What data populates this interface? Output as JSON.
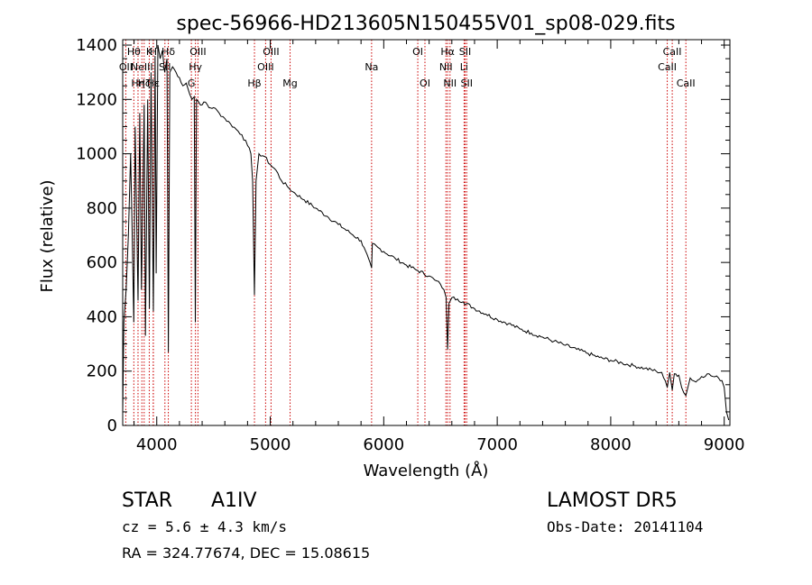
{
  "chart_data": {
    "type": "line",
    "title": "spec-56966-HD213605N150455V01_sp08-029.fits",
    "xlabel": "Wavelength (Å)",
    "ylabel": "Flux (relative)",
    "xlim": [
      3700,
      9050
    ],
    "ylim": [
      0,
      1420
    ],
    "xticks": [
      4000,
      5000,
      6000,
      7000,
      8000,
      9000
    ],
    "yticks": [
      0,
      200,
      400,
      600,
      800,
      1000,
      1200,
      1400
    ],
    "grid": false,
    "line_color": "#000000",
    "marker_color": "#cc0000",
    "series": [
      {
        "x": [
          3700,
          3710,
          3730,
          3750,
          3770,
          3798,
          3810,
          3835,
          3850,
          3865,
          3889,
          3900,
          3920,
          3935,
          3950,
          3970,
          3985,
          3995,
          4010,
          4030,
          4050,
          4070,
          4090,
          4102,
          4115,
          4140,
          4170,
          4200,
          4230,
          4260,
          4290,
          4310,
          4330,
          4340,
          4350,
          4370,
          4400,
          4430,
          4460,
          4500,
          4550,
          4600,
          4650,
          4700,
          4750,
          4800,
          4830,
          4845,
          4861,
          4875,
          4900,
          4950,
          5000,
          5050,
          5100,
          5150,
          5200,
          5300,
          5400,
          5500,
          5600,
          5700,
          5800,
          5893,
          5900,
          5950,
          6000,
          6100,
          6200,
          6300,
          6400,
          6450,
          6500,
          6530,
          6550,
          6563,
          6575,
          6600,
          6650,
          6700,
          6800,
          6900,
          7000,
          7100,
          7200,
          7300,
          7400,
          7500,
          7600,
          7700,
          7800,
          7900,
          8000,
          8100,
          8200,
          8300,
          8400,
          8450,
          8498,
          8520,
          8542,
          8560,
          8600,
          8625,
          8662,
          8700,
          8750,
          8800,
          8850,
          8900,
          8950,
          8980,
          9000,
          9020,
          9040
        ],
        "y": [
          50,
          380,
          500,
          700,
          1000,
          380,
          1100,
          460,
          1150,
          500,
          1180,
          330,
          1200,
          430,
          1300,
          420,
          1360,
          560,
          1400,
          1350,
          1380,
          1300,
          1350,
          270,
          1300,
          1320,
          1300,
          1280,
          1250,
          1260,
          1220,
          1200,
          1210,
          380,
          1200,
          1190,
          1180,
          1190,
          1170,
          1170,
          1150,
          1130,
          1110,
          1090,
          1070,
          1030,
          1000,
          900,
          480,
          900,
          1000,
          990,
          960,
          940,
          900,
          880,
          860,
          830,
          800,
          770,
          740,
          710,
          680,
          580,
          670,
          655,
          640,
          615,
          590,
          570,
          550,
          535,
          520,
          500,
          470,
          280,
          450,
          470,
          465,
          455,
          430,
          410,
          390,
          375,
          355,
          340,
          325,
          310,
          295,
          280,
          265,
          250,
          240,
          230,
          220,
          210,
          200,
          195,
          140,
          195,
          130,
          190,
          185,
          140,
          110,
          175,
          160,
          180,
          190,
          180,
          175,
          165,
          140,
          50,
          20
        ]
      }
    ],
    "lines": [
      {
        "x": 3727,
        "label": "OII",
        "level": 2
      },
      {
        "x": 3798,
        "label": "Hθ",
        "level": 1
      },
      {
        "x": 3835,
        "label": "Hη",
        "level": 3
      },
      {
        "x": 3869,
        "label": "NeIII",
        "level": 2
      },
      {
        "x": 3889,
        "label": "Hζ",
        "level": 3
      },
      {
        "x": 3934,
        "label": "K",
        "level": 1
      },
      {
        "x": 3969,
        "label": "H",
        "level": 1
      },
      {
        "x": 3970,
        "label": "Hε",
        "level": 3
      },
      {
        "x": 4072,
        "label": "SII",
        "level": 2
      },
      {
        "x": 4102,
        "label": "Hδ",
        "level": 1
      },
      {
        "x": 4305,
        "label": "G",
        "level": 3
      },
      {
        "x": 4341,
        "label": "Hγ",
        "level": 2
      },
      {
        "x": 4363,
        "label": "OIII",
        "level": 1
      },
      {
        "x": 4861,
        "label": "Hβ",
        "level": 3
      },
      {
        "x": 4959,
        "label": "OIII",
        "level": 2
      },
      {
        "x": 5007,
        "label": "OIII",
        "level": 1
      },
      {
        "x": 5175,
        "label": "Mg",
        "level": 3
      },
      {
        "x": 5893,
        "label": "Na",
        "level": 2
      },
      {
        "x": 6300,
        "label": "OI",
        "level": 1
      },
      {
        "x": 6363,
        "label": "OI",
        "level": 3
      },
      {
        "x": 6548,
        "label": "NII",
        "level": 2
      },
      {
        "x": 6563,
        "label": "Hα",
        "level": 1
      },
      {
        "x": 6584,
        "label": "NII",
        "level": 3
      },
      {
        "x": 6708,
        "label": "Li",
        "level": 2
      },
      {
        "x": 6717,
        "label": "SII",
        "level": 1
      },
      {
        "x": 6731,
        "label": "SII",
        "level": 3
      },
      {
        "x": 8498,
        "label": "CaII",
        "level": 2
      },
      {
        "x": 8542,
        "label": "CaII",
        "level": 1
      },
      {
        "x": 8662,
        "label": "CaII",
        "level": 3
      }
    ]
  },
  "info": {
    "object_class": "STAR",
    "subclass": "A1IV",
    "survey": "LAMOST DR5",
    "cz": "cz = 5.6 ± 4.3 km/s",
    "obs_date": "Obs-Date: 20141104",
    "coords": "RA = 324.77674, DEC =  15.08615"
  }
}
